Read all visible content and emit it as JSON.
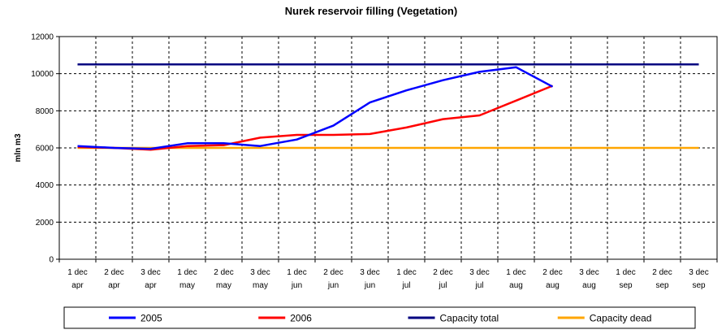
{
  "chart_data": {
    "type": "line",
    "title": "Nurek reservoir filling (Vegetation)",
    "ylabel": "mln m3",
    "xlabel": "",
    "ylim": [
      0,
      12000
    ],
    "yticks": [
      0,
      2000,
      4000,
      6000,
      8000,
      10000,
      12000
    ],
    "grid": true,
    "legend_position": "bottom",
    "categories": [
      [
        "1 dec",
        "apr"
      ],
      [
        "2 dec",
        "apr"
      ],
      [
        "3 dec",
        "apr"
      ],
      [
        "1 dec",
        "may"
      ],
      [
        "2 dec",
        "may"
      ],
      [
        "3 dec",
        "may"
      ],
      [
        "1 dec",
        "jun"
      ],
      [
        "2 dec",
        "jun"
      ],
      [
        "3 dec",
        "jun"
      ],
      [
        "1 dec",
        "jul"
      ],
      [
        "2 dec",
        "jul"
      ],
      [
        "3 dec",
        "jul"
      ],
      [
        "1 dec",
        "aug"
      ],
      [
        "2 dec",
        "aug"
      ],
      [
        "3 dec",
        "aug"
      ],
      [
        "1 dec",
        "sep"
      ],
      [
        "2 dec",
        "sep"
      ],
      [
        "3 dec",
        "sep"
      ]
    ],
    "series": [
      {
        "name": "2005",
        "color": "#0000ff",
        "values": [
          6100,
          6000,
          5950,
          6250,
          6250,
          6100,
          6450,
          7200,
          8450,
          9100,
          9650,
          10100,
          10350,
          9300,
          null,
          null,
          null,
          null
        ]
      },
      {
        "name": "2006",
        "color": "#ff0000",
        "values": [
          6050,
          6000,
          5900,
          6100,
          6150,
          6550,
          6700,
          6700,
          6750,
          7100,
          7550,
          7750,
          8550,
          9350,
          null,
          null,
          null,
          null
        ]
      },
      {
        "name": "Capacity total",
        "color": "#000080",
        "values": [
          10500,
          10500,
          10500,
          10500,
          10500,
          10500,
          10500,
          10500,
          10500,
          10500,
          10500,
          10500,
          10500,
          10500,
          10500,
          10500,
          10500,
          10500
        ]
      },
      {
        "name": "Capacity dead",
        "color": "#ffa500",
        "values": [
          6000,
          6000,
          6000,
          6000,
          6000,
          6000,
          6000,
          6000,
          6000,
          6000,
          6000,
          6000,
          6000,
          6000,
          6000,
          6000,
          6000,
          6000
        ]
      }
    ]
  }
}
